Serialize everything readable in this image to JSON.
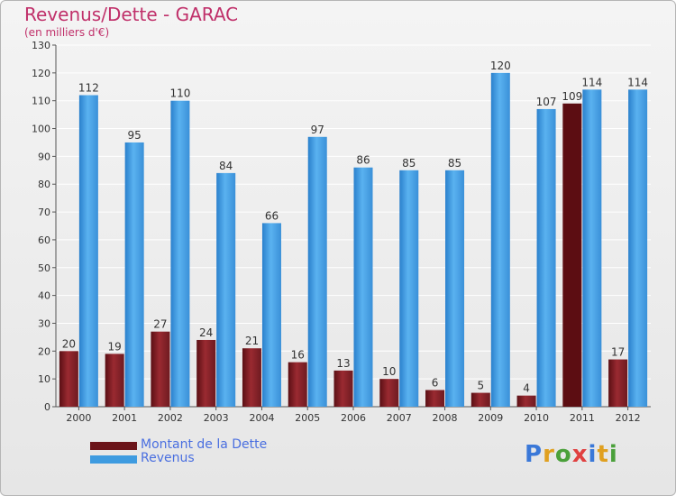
{
  "title": "Revenus/Dette - GARAC",
  "subtitle": "(en milliers d'€)",
  "logo": {
    "text": "Proxiti",
    "letter_colors": [
      "#3a78d8",
      "#e0a020",
      "#4aa03a",
      "#e04040",
      "#3a78d8",
      "#e0a020",
      "#4aa03a"
    ]
  },
  "legend": [
    {
      "label": "Montant de la Dette",
      "color": "#7b1e24"
    },
    {
      "label": "Revenus",
      "color": "#3e9be0"
    }
  ],
  "chart_data": {
    "type": "bar",
    "categories": [
      "2000",
      "2001",
      "2002",
      "2003",
      "2004",
      "2005",
      "2006",
      "2007",
      "2008",
      "2009",
      "2010",
      "2011",
      "2012"
    ],
    "series": [
      {
        "name": "Montant de la Dette",
        "color": "#7b1e24",
        "values": [
          20,
          19,
          27,
          24,
          21,
          16,
          13,
          10,
          6,
          5,
          4,
          109,
          17
        ]
      },
      {
        "name": "Revenus",
        "color": "#3e9be0",
        "values": [
          112,
          95,
          110,
          84,
          66,
          97,
          86,
          85,
          85,
          120,
          107,
          114,
          114
        ]
      }
    ],
    "ylim": [
      0,
      130
    ],
    "yticks": [
      0,
      10,
      20,
      30,
      40,
      50,
      60,
      70,
      80,
      90,
      100,
      110,
      120,
      130
    ],
    "grid": true,
    "legend_position": "bottom-left"
  }
}
